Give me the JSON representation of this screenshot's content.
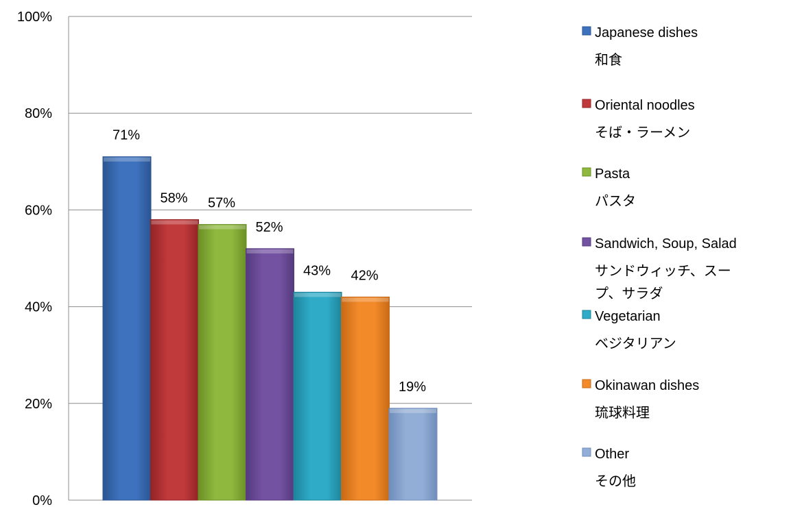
{
  "chart_data": {
    "type": "bar",
    "title": "",
    "xlabel": "",
    "ylabel": "",
    "ylim": [
      0,
      100
    ],
    "y_ticks": [
      "0%",
      "20%",
      "40%",
      "60%",
      "80%",
      "100%"
    ],
    "y_tick_values": [
      0,
      20,
      40,
      60,
      80,
      100
    ],
    "grid": true,
    "legend_position": "right",
    "categories": [
      {
        "name_en": "Japanese dishes",
        "name_ja": [
          "和食"
        ],
        "value": 71,
        "label": "71%",
        "color": "#3E72BE",
        "dark": "#2A5592"
      },
      {
        "name_en": "Oriental noodles",
        "name_ja": [
          "そば・ラーメン"
        ],
        "value": 58,
        "label": "58%",
        "color": "#C0393B",
        "dark": "#922325"
      },
      {
        "name_en": "Pasta",
        "name_ja": [
          "パスタ"
        ],
        "value": 57,
        "label": "57%",
        "color": "#8EB83E",
        "dark": "#6B8F26"
      },
      {
        "name_en": "Sandwich, Soup, Salad",
        "name_ja": [
          "サンドウィッチ、スー",
          "プ、サラダ"
        ],
        "value": 52,
        "label": "52%",
        "color": "#7452A2",
        "dark": "#553A7E"
      },
      {
        "name_en": "Vegetarian",
        "name_ja": [
          "ベジタリアン"
        ],
        "value": 43,
        "label": "43%",
        "color": "#2FABC7",
        "dark": "#1E849B"
      },
      {
        "name_en": "Okinawan dishes",
        "name_ja": [
          "琉球料理"
        ],
        "value": 42,
        "label": "42%",
        "color": "#F28A2A",
        "dark": "#C86A15"
      },
      {
        "name_en": "Other",
        "name_ja": [
          "その他"
        ],
        "value": 19,
        "label": "19%",
        "color": "#93AED6",
        "dark": "#6F8DBB"
      }
    ]
  }
}
